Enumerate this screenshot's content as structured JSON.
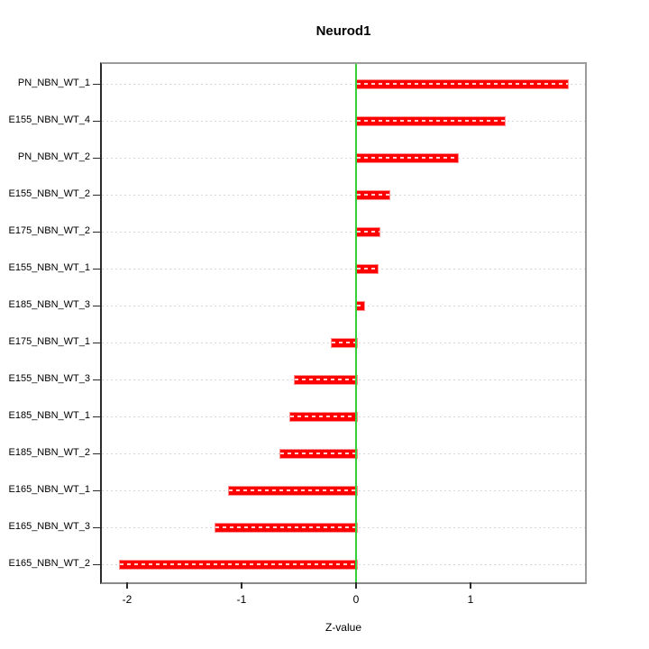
{
  "chart_data": {
    "type": "bar",
    "orientation": "horizontal",
    "title": "Neurod1",
    "xlabel": "Z-value",
    "ylabel": "",
    "categories": [
      "PN_NBN_WT_1",
      "E155_NBN_WT_4",
      "PN_NBN_WT_2",
      "E155_NBN_WT_2",
      "E175_NBN_WT_2",
      "E155_NBN_WT_1",
      "E185_NBN_WT_3",
      "E175_NBN_WT_1",
      "E155_NBN_WT_3",
      "E185_NBN_WT_1",
      "E185_NBN_WT_2",
      "E165_NBN_WT_1",
      "E165_NBN_WT_3",
      "E165_NBN_WT_2"
    ],
    "values": [
      1.84,
      1.29,
      0.88,
      0.28,
      0.2,
      0.18,
      0.06,
      -0.22,
      -0.54,
      -0.58,
      -0.67,
      -1.12,
      -1.24,
      -2.07
    ],
    "xticks": [
      -2,
      -1,
      0,
      1
    ],
    "xlim": [
      -2.22,
      2.0
    ],
    "grid": "dashed-horizontal",
    "zero_reference_line": 0,
    "colors": {
      "bar_fill": "#fe0000",
      "bar_border": "#ff8f8f",
      "zero_line": "#35d035",
      "gridline": "#d6d6d6",
      "box_border": "#9b9b9b",
      "axis": "#2b2b2b",
      "text": "#000000",
      "background": "#ffffff"
    }
  }
}
